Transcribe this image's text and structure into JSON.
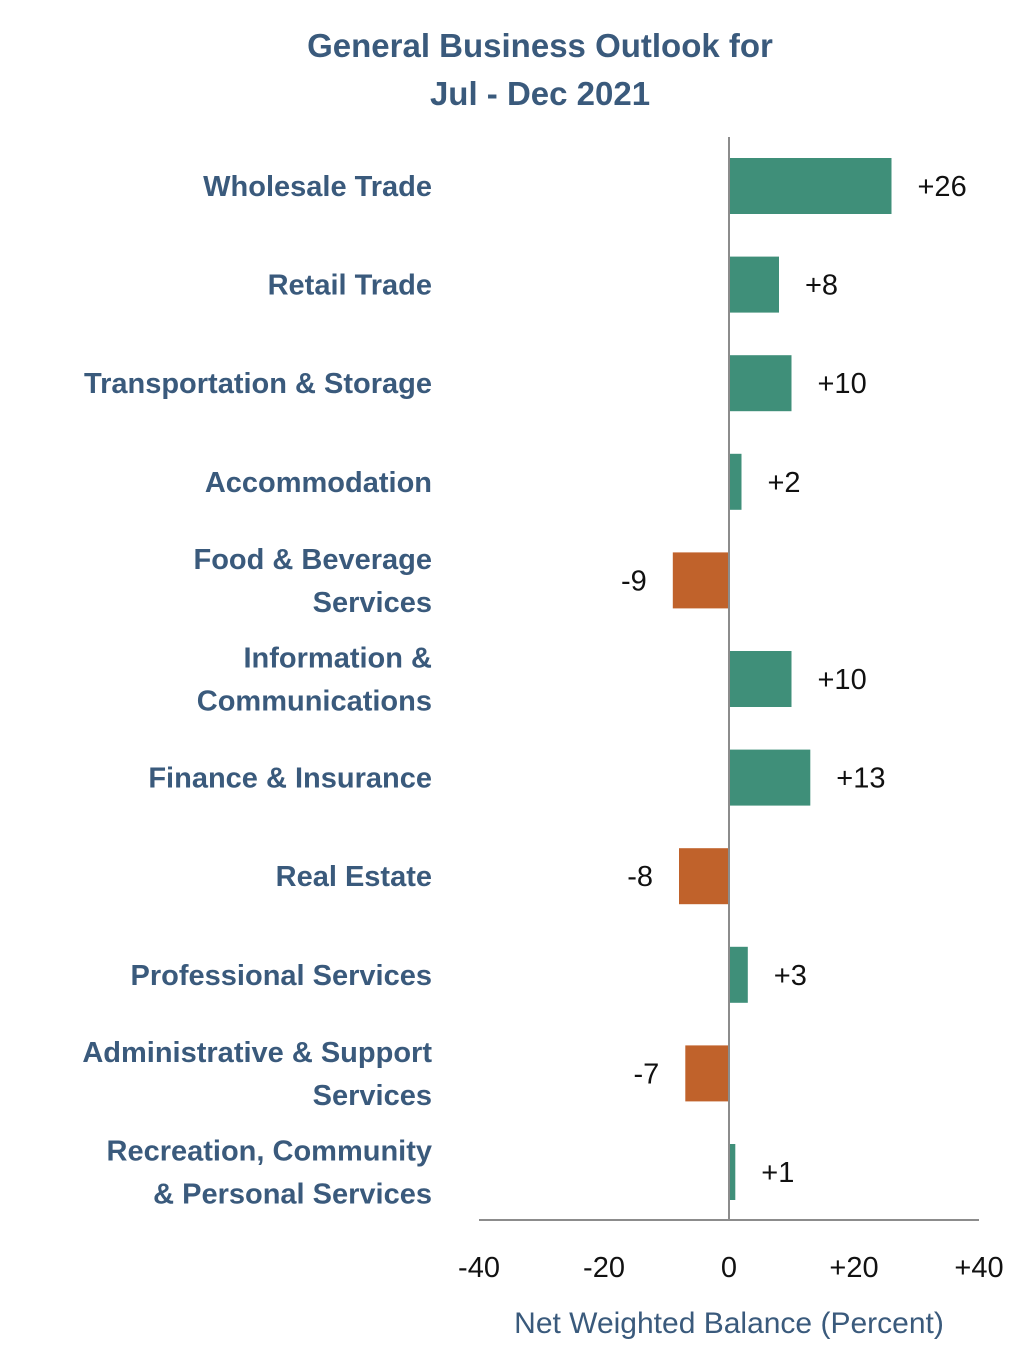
{
  "chart_data": {
    "type": "bar",
    "orientation": "horizontal",
    "title_lines": [
      "General Business Outlook for",
      "Jul - Dec 2021"
    ],
    "xlabel": "Net Weighted Balance (Percent)",
    "ylabel": "",
    "xlim": [
      -40,
      40
    ],
    "x_ticks": [
      -40,
      -20,
      0,
      20,
      40
    ],
    "x_tick_labels": [
      "-40",
      "-20",
      "0",
      "+20",
      "+40"
    ],
    "grid": false,
    "legend": "none",
    "categories": [
      [
        "Wholesale Trade"
      ],
      [
        "Retail Trade"
      ],
      [
        "Transportation & Storage"
      ],
      [
        "Accommodation"
      ],
      [
        "Food & Beverage",
        "Services"
      ],
      [
        "Information &",
        "Communications"
      ],
      [
        "Finance & Insurance"
      ],
      [
        "Real Estate"
      ],
      [
        "Professional Services"
      ],
      [
        "Administrative & Support",
        "Services"
      ],
      [
        "Recreation, Community",
        "& Personal Services"
      ]
    ],
    "values": [
      26,
      8,
      10,
      2,
      -9,
      10,
      13,
      -8,
      3,
      -7,
      1
    ],
    "value_labels": [
      "+26",
      "+8",
      "+10",
      "+2",
      "-9",
      "+10",
      "+13",
      "-8",
      "+3",
      "-7",
      "+1"
    ],
    "colors": {
      "positive": "#3f8f79",
      "negative": "#c0622b",
      "axis": "#8c8c8c",
      "title": "#3a5a7c"
    }
  }
}
